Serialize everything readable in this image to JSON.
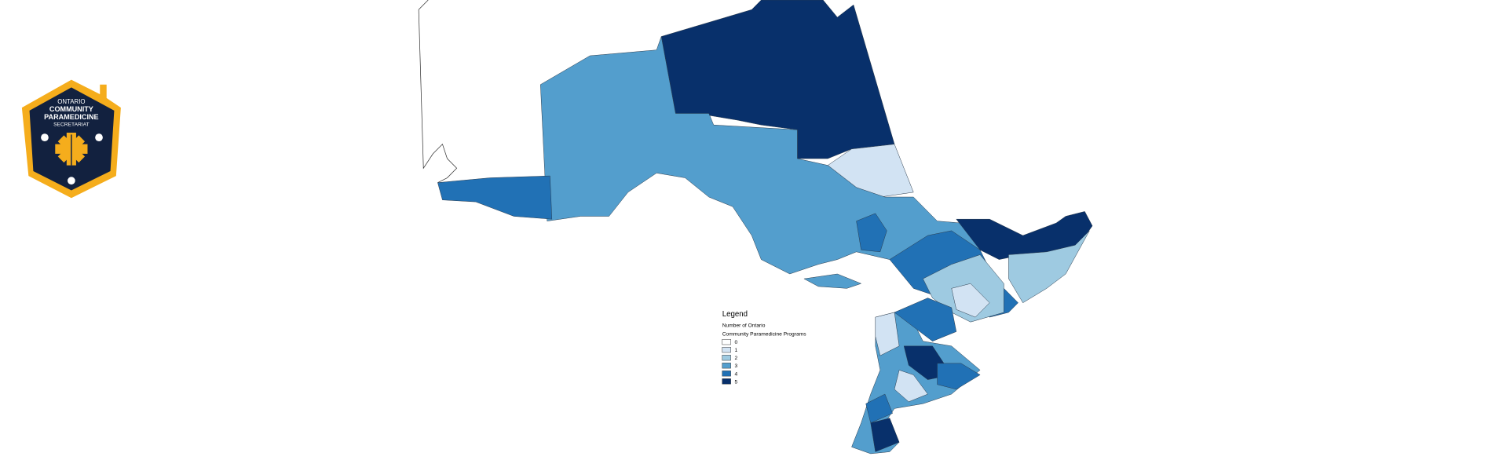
{
  "logo": {
    "lines": [
      "ONTARIO",
      "COMMUNITY",
      "PARAMEDICINE",
      "SECRETARIAT"
    ]
  },
  "legend": {
    "title": "Legend",
    "subtitle_lines": [
      "Number of Ontario",
      "Community Paramedicine Programs"
    ],
    "items": [
      {
        "label": 0,
        "color": "#ffffff"
      },
      {
        "label": 1,
        "color": "#d2e3f3"
      },
      {
        "label": 2,
        "color": "#9ecae1"
      },
      {
        "label": 3,
        "color": "#539ecd"
      },
      {
        "label": 4,
        "color": "#2171b5"
      },
      {
        "label": 5,
        "color": "#08306b"
      }
    ]
  }
}
